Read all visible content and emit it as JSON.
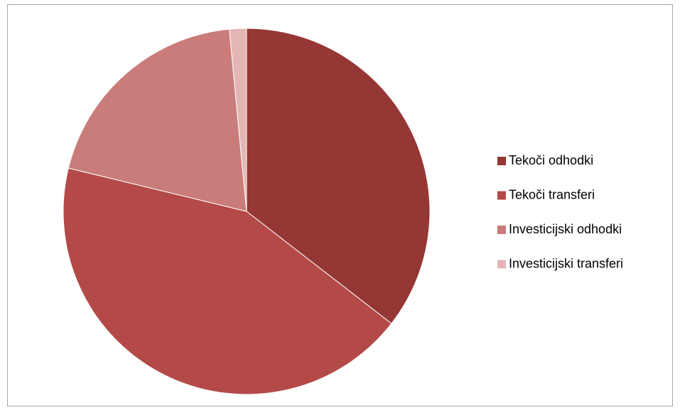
{
  "chart_data": {
    "type": "pie",
    "categories": [
      "Tekoči odhodki",
      "Tekoči transferi",
      "Investicijski odhodki",
      "Investicijski transferi"
    ],
    "values": [
      35.5,
      43.3,
      19.7,
      1.5
    ],
    "colors": [
      "#953735",
      "#b34a48",
      "#c97c7a",
      "#e3b6b5"
    ],
    "legend": "right"
  }
}
